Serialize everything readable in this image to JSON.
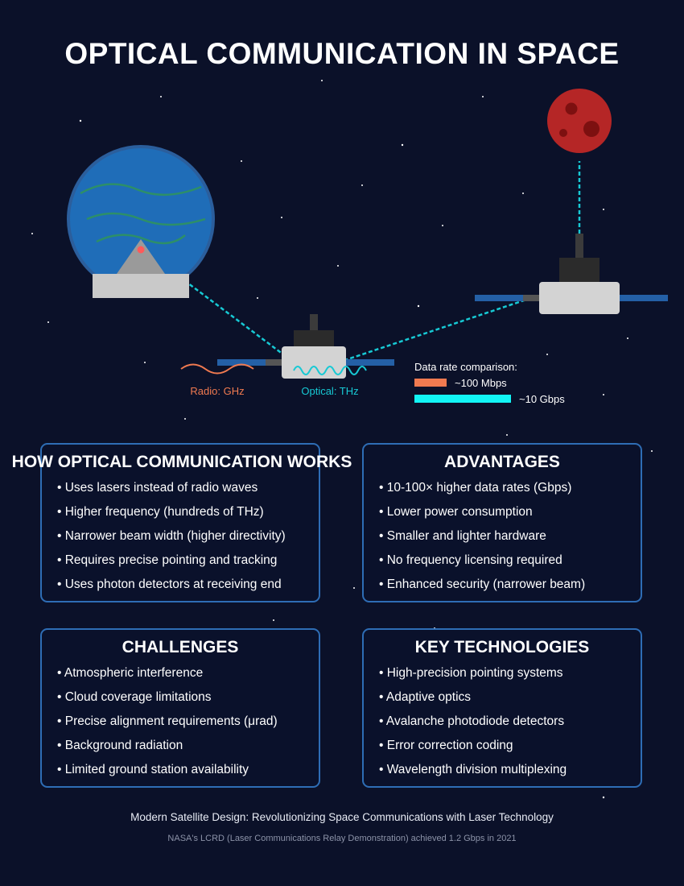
{
  "title": "OPTICAL COMMUNICATION IN SPACE",
  "diagram": {
    "radio_label": "Radio: GHz",
    "optical_label": "Optical: THz",
    "data_rate_title": "Data rate comparison:",
    "data_rate_radio": "~100 Mbps",
    "data_rate_optical": "~10 Gbps"
  },
  "colors": {
    "background": "#0b1129",
    "laser": "#17c9d4",
    "radio": "#f07a50",
    "optical_bar": "#12f5f5",
    "box_border": "#2e6db5",
    "earth": "#1f6db8",
    "mars": "#b52626",
    "solar_panel": "#2460a6"
  },
  "sections": [
    {
      "title": "HOW OPTICAL COMMUNICATION WORKS",
      "items": [
        "Uses lasers instead of radio waves",
        "Higher frequency (hundreds of THz)",
        "Narrower beam width (higher directivity)",
        "Requires precise pointing and tracking",
        "Uses photon detectors at receiving end"
      ]
    },
    {
      "title": "ADVANTAGES",
      "items": [
        "10-100× higher data rates (Gbps)",
        "Lower power consumption",
        "Smaller and lighter hardware",
        "No frequency licensing required",
        "Enhanced security (narrower beam)"
      ]
    },
    {
      "title": "CHALLENGES",
      "items": [
        "Atmospheric interference",
        "Cloud coverage limitations",
        "Precise alignment requirements (μrad)",
        "Background radiation",
        "Limited ground station availability"
      ]
    },
    {
      "title": "KEY TECHNOLOGIES",
      "items": [
        "High-precision pointing systems",
        "Adaptive optics",
        "Avalanche photodiode detectors",
        "Error correction coding",
        "Wavelength division multiplexing"
      ]
    }
  ],
  "footer": {
    "main": "Modern Satellite Design: Revolutionizing Space Communications with Laser Technology",
    "sub": "NASA's LCRD (Laser Communications Relay Demonstration) achieved 1.2 Gbps in 2021"
  }
}
